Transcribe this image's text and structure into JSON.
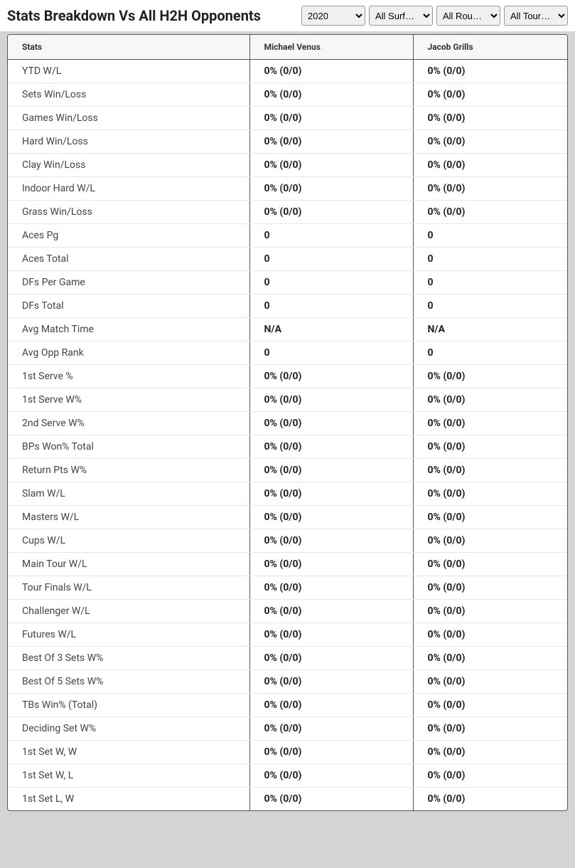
{
  "header": {
    "title": "Stats Breakdown Vs All H2H Opponents"
  },
  "filters": {
    "year": {
      "selected": "2020"
    },
    "surface": {
      "selected": "All Surf…"
    },
    "round": {
      "selected": "All Rou…"
    },
    "tournament": {
      "selected": "All Tour…"
    }
  },
  "table": {
    "columns": {
      "stats": "Stats",
      "player1": "Michael Venus",
      "player2": "Jacob Grills"
    },
    "rows": [
      {
        "stat": "YTD W/L",
        "p1": "0% (0/0)",
        "p2": "0% (0/0)"
      },
      {
        "stat": "Sets Win/Loss",
        "p1": "0% (0/0)",
        "p2": "0% (0/0)"
      },
      {
        "stat": "Games Win/Loss",
        "p1": "0% (0/0)",
        "p2": "0% (0/0)"
      },
      {
        "stat": "Hard Win/Loss",
        "p1": "0% (0/0)",
        "p2": "0% (0/0)"
      },
      {
        "stat": "Clay Win/Loss",
        "p1": "0% (0/0)",
        "p2": "0% (0/0)"
      },
      {
        "stat": "Indoor Hard W/L",
        "p1": "0% (0/0)",
        "p2": "0% (0/0)"
      },
      {
        "stat": "Grass Win/Loss",
        "p1": "0% (0/0)",
        "p2": "0% (0/0)"
      },
      {
        "stat": "Aces Pg",
        "p1": "0",
        "p2": "0"
      },
      {
        "stat": "Aces Total",
        "p1": "0",
        "p2": "0"
      },
      {
        "stat": "DFs Per Game",
        "p1": "0",
        "p2": "0"
      },
      {
        "stat": "DFs Total",
        "p1": "0",
        "p2": "0"
      },
      {
        "stat": "Avg Match Time",
        "p1": "N/A",
        "p2": "N/A"
      },
      {
        "stat": "Avg Opp Rank",
        "p1": "0",
        "p2": "0"
      },
      {
        "stat": "1st Serve %",
        "p1": "0% (0/0)",
        "p2": "0% (0/0)"
      },
      {
        "stat": "1st Serve W%",
        "p1": "0% (0/0)",
        "p2": "0% (0/0)"
      },
      {
        "stat": "2nd Serve W%",
        "p1": "0% (0/0)",
        "p2": "0% (0/0)"
      },
      {
        "stat": "BPs Won% Total",
        "p1": "0% (0/0)",
        "p2": "0% (0/0)"
      },
      {
        "stat": "Return Pts W%",
        "p1": "0% (0/0)",
        "p2": "0% (0/0)"
      },
      {
        "stat": "Slam W/L",
        "p1": "0% (0/0)",
        "p2": "0% (0/0)"
      },
      {
        "stat": "Masters W/L",
        "p1": "0% (0/0)",
        "p2": "0% (0/0)"
      },
      {
        "stat": "Cups W/L",
        "p1": "0% (0/0)",
        "p2": "0% (0/0)"
      },
      {
        "stat": "Main Tour W/L",
        "p1": "0% (0/0)",
        "p2": "0% (0/0)"
      },
      {
        "stat": "Tour Finals W/L",
        "p1": "0% (0/0)",
        "p2": "0% (0/0)"
      },
      {
        "stat": "Challenger W/L",
        "p1": "0% (0/0)",
        "p2": "0% (0/0)"
      },
      {
        "stat": "Futures W/L",
        "p1": "0% (0/0)",
        "p2": "0% (0/0)"
      },
      {
        "stat": "Best Of 3 Sets W%",
        "p1": "0% (0/0)",
        "p2": "0% (0/0)"
      },
      {
        "stat": "Best Of 5 Sets W%",
        "p1": "0% (0/0)",
        "p2": "0% (0/0)"
      },
      {
        "stat": "TBs Win% (Total)",
        "p1": "0% (0/0)",
        "p2": "0% (0/0)"
      },
      {
        "stat": "Deciding Set W%",
        "p1": "0% (0/0)",
        "p2": "0% (0/0)"
      },
      {
        "stat": "1st Set W, W",
        "p1": "0% (0/0)",
        "p2": "0% (0/0)"
      },
      {
        "stat": "1st Set W, L",
        "p1": "0% (0/0)",
        "p2": "0% (0/0)"
      },
      {
        "stat": "1st Set L, W",
        "p1": "0% (0/0)",
        "p2": "0% (0/0)"
      }
    ]
  },
  "styling": {
    "page_background": "#d4d4d4",
    "panel_background": "#ffffff",
    "border_color": "#555555",
    "row_divider_color": "#e6e6e6",
    "header_bg": "#f7f7f7",
    "title_color": "#222222",
    "text_color": "#333333",
    "title_fontsize": 20,
    "header_fontsize": 12,
    "cell_fontsize": 14
  }
}
